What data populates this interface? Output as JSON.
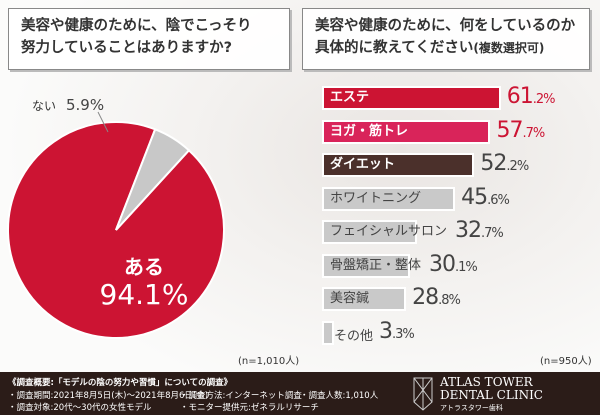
{
  "left": {
    "question": [
      "美容や健康のために、陰でこっそり",
      "努力していることはありますか?"
    ],
    "n": "(n=1,010人)"
  },
  "right": {
    "question": [
      "美容や健康のために、何をしているのか",
      "具体的に教えてください"
    ],
    "note": "(複数選択可)",
    "n": "(n=950人)"
  },
  "chart_data": [
    {
      "type": "pie",
      "categories": [
        "ある",
        "ない"
      ],
      "values": [
        94.1,
        5.9
      ],
      "value_labels": [
        "94.1%",
        "5.9%"
      ],
      "colors": [
        "#cc1433",
        "#c8c8c8"
      ]
    },
    {
      "type": "bar",
      "orientation": "horizontal",
      "categories": [
        "エステ",
        "ヨガ・筋トレ",
        "ダイエット",
        "ホワイトニング",
        "フェイシャルサロン",
        "骨盤矯正・整体",
        "美容鍼",
        "その他"
      ],
      "values": [
        61.2,
        57.7,
        52.2,
        45.6,
        32.7,
        30.1,
        28.8,
        3.3
      ],
      "colors": [
        "#cc1433",
        "#d9245a",
        "#4b302b",
        "#c9c9c9",
        "#c9c9c9",
        "#c9c9c9",
        "#c9c9c9",
        "#c9c9c9"
      ],
      "value_colors": [
        "#cc1433",
        "#cc1433",
        "#444444",
        "#444444",
        "#444444",
        "#444444",
        "#444444",
        "#444444"
      ]
    }
  ],
  "footer": {
    "title": "《調査概要:「モデルの陰の努力や習慣」についての調査》",
    "items": [
      "・調査期間:2021年8月5日(木)〜2021年8月6日(金)",
      "・調査方法:インターネット調査",
      "・調査人数:1,010人",
      "・調査対象:20代〜30代の女性モデル",
      "・モニター提供元:ゼネラルリサーチ"
    ],
    "logo": {
      "line1": "ATLAS TOWER",
      "line2": "DENTAL CLINIC",
      "line3": "アトラスタワー歯科"
    }
  }
}
